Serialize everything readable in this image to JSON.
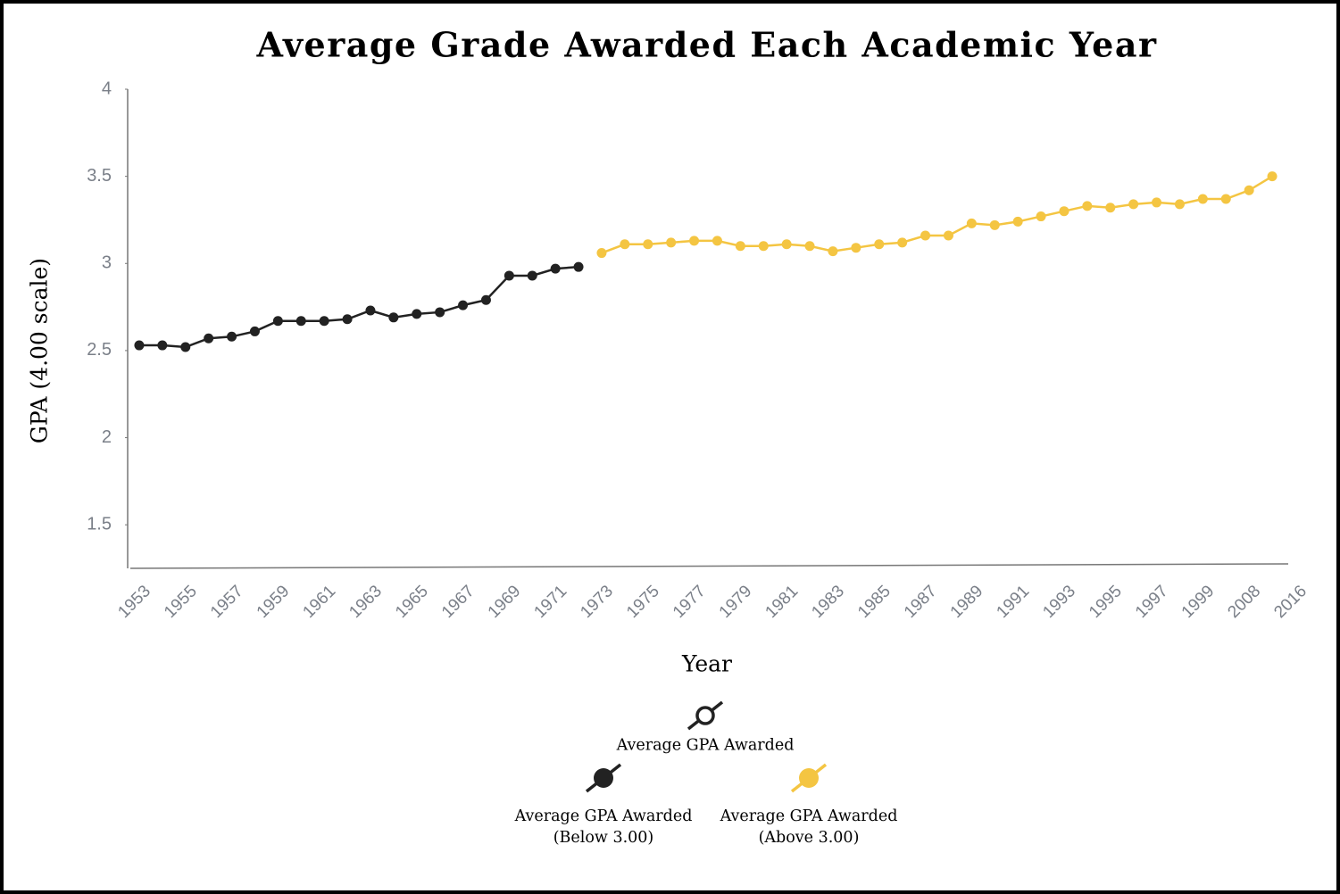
{
  "chart_data": {
    "type": "line",
    "title": "Average Grade Awarded Each Academic Year",
    "x_label": "Year",
    "y_label": "GPA (4.00 scale)",
    "categories": [
      "1953",
      null,
      "1955",
      null,
      "1957",
      null,
      "1959",
      null,
      "1961",
      null,
      "1963",
      null,
      "1965",
      null,
      "1967",
      null,
      "1969",
      null,
      "1971",
      null,
      "1973",
      null,
      "1975",
      null,
      "1977",
      null,
      "1979",
      null,
      "1981",
      null,
      "1983",
      null,
      "1985",
      null,
      "1987",
      null,
      "1989",
      null,
      "1991",
      null,
      "1993",
      null,
      "1995",
      null,
      "1997",
      null,
      "1999",
      null,
      "2008",
      null,
      "2016"
    ],
    "series": [
      {
        "name": "Average GPA Awarded",
        "color": "#222222",
        "marker": "hollow",
        "values": [
          null,
          null,
          null,
          null,
          null,
          null,
          null,
          null,
          null,
          null,
          null,
          null,
          null,
          null,
          null,
          null,
          null,
          null,
          null,
          null,
          null,
          null,
          null,
          null,
          null,
          null,
          null,
          null,
          null,
          null,
          null,
          null,
          null,
          null,
          null,
          null,
          null,
          null,
          null,
          null,
          null,
          null,
          null,
          null,
          null,
          null,
          null,
          null,
          null,
          null,
          null
        ]
      },
      {
        "name": "Average GPA Awarded (Below 3.00)",
        "color": "#222222",
        "marker": "filled",
        "values": [
          2.53,
          2.53,
          2.52,
          2.57,
          2.58,
          2.61,
          2.67,
          2.67,
          2.67,
          2.68,
          2.73,
          2.69,
          2.71,
          2.72,
          2.76,
          2.79,
          2.93,
          2.93,
          2.97,
          2.98,
          null,
          null,
          null,
          null,
          null,
          null,
          null,
          null,
          null,
          null,
          null,
          null,
          null,
          null,
          null,
          null,
          null,
          null,
          null,
          null,
          null,
          null,
          null,
          null,
          null,
          null,
          null,
          null,
          null,
          null,
          null
        ]
      },
      {
        "name": "Average GPA Awarded (Above 3.00)",
        "color": "#f4c542",
        "marker": "filled",
        "values": [
          null,
          null,
          null,
          null,
          null,
          null,
          null,
          null,
          null,
          null,
          null,
          null,
          null,
          null,
          null,
          null,
          null,
          null,
          null,
          null,
          3.06,
          3.11,
          3.11,
          3.12,
          3.13,
          3.13,
          3.1,
          3.1,
          3.11,
          3.1,
          3.07,
          3.09,
          3.11,
          3.12,
          3.16,
          3.16,
          3.23,
          3.22,
          3.24,
          3.27,
          3.3,
          3.33,
          3.32,
          3.34,
          3.35,
          3.34,
          3.37,
          3.37,
          3.42,
          3.5,
          null
        ]
      }
    ],
    "ylim": [
      1.25,
      4
    ],
    "yticks": [
      1.5,
      2,
      2.5,
      3,
      3.5,
      4
    ],
    "grid": false
  }
}
